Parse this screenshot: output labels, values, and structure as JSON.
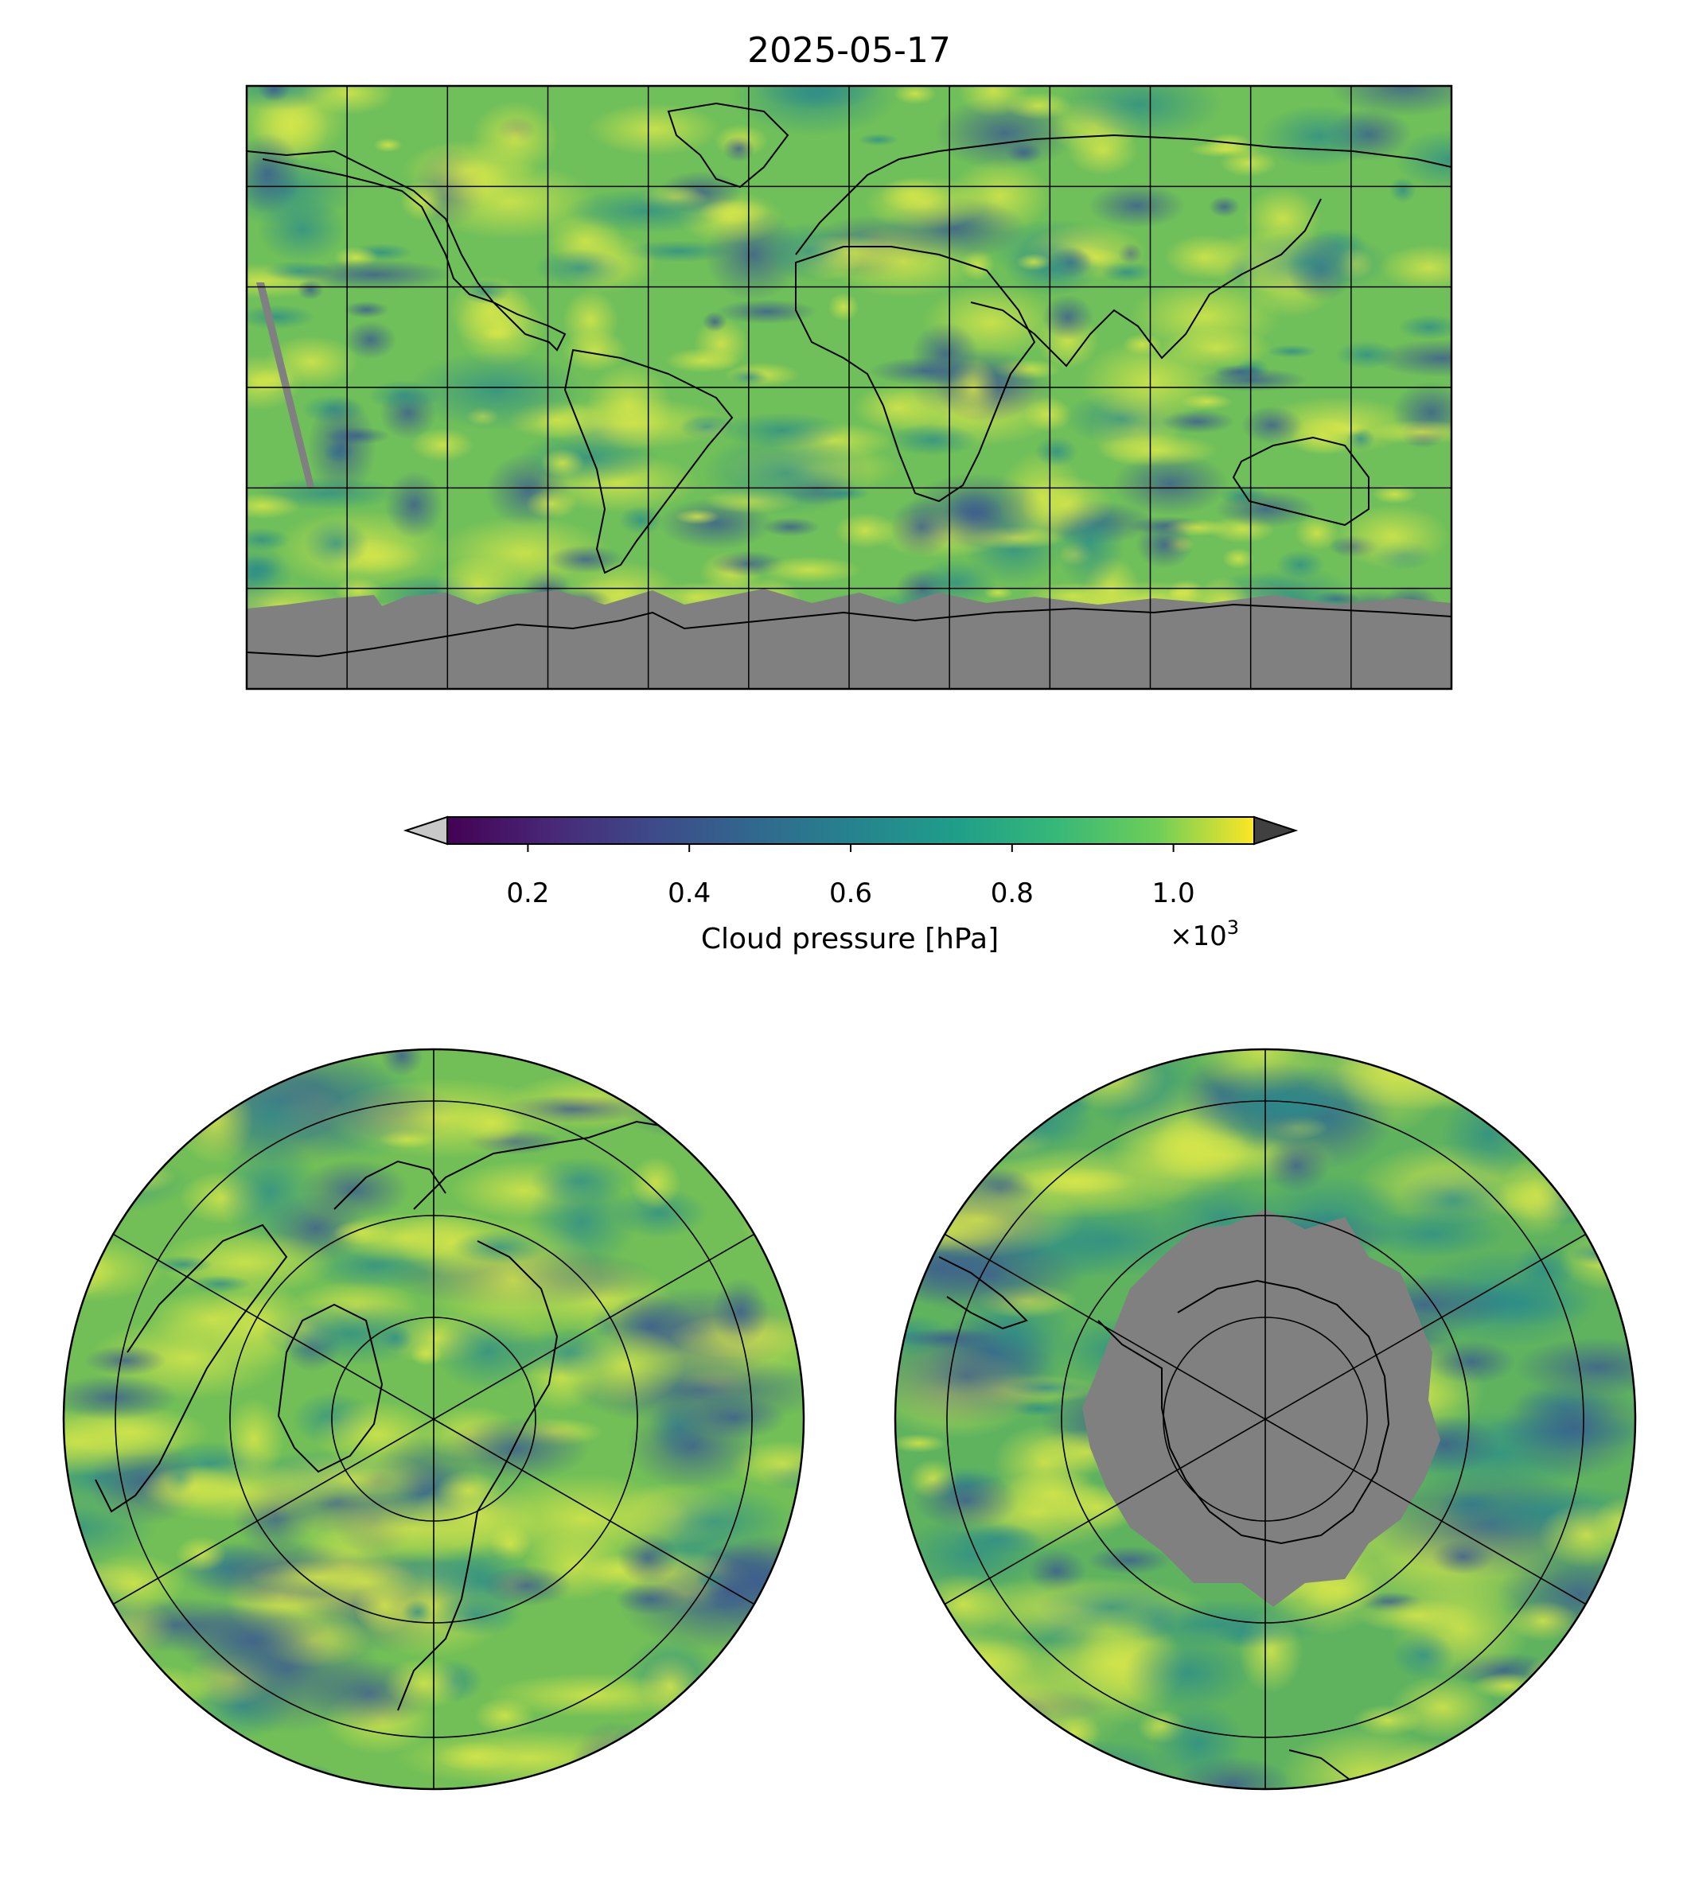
{
  "title": "2025-05-17",
  "colorbar": {
    "label": "Cloud pressure [hPa]",
    "ticks": [
      "0.2",
      "0.4",
      "0.6",
      "0.8",
      "1.0"
    ],
    "tick_values": [
      0.2,
      0.4,
      0.6,
      0.8,
      1.0
    ],
    "range": [
      0.1,
      1.1
    ],
    "multiplier_prefix": "×10",
    "multiplier_exp": "3",
    "colormap": "viridis",
    "under_color": "#c8c8c8",
    "over_color": "#404040",
    "extend": "both"
  },
  "maps": [
    {
      "name": "global",
      "projection": "plate-carree",
      "gridlines": "every 30 degrees",
      "missing_color": "#808080"
    },
    {
      "name": "north-polar",
      "projection": "north-polar-stereographic",
      "gridlines": "every 60 degrees longitude",
      "missing_color": "#808080"
    },
    {
      "name": "south-polar",
      "projection": "south-polar-stereographic",
      "gridlines": "every 60 degrees longitude",
      "missing_color": "#808080"
    }
  ],
  "colors": {
    "viridis_dark": "#440154",
    "viridis_blue": "#3b528b",
    "viridis_teal": "#21918c",
    "viridis_green": "#5ec962",
    "viridis_yellow": "#fde725",
    "missing": "#808080"
  }
}
